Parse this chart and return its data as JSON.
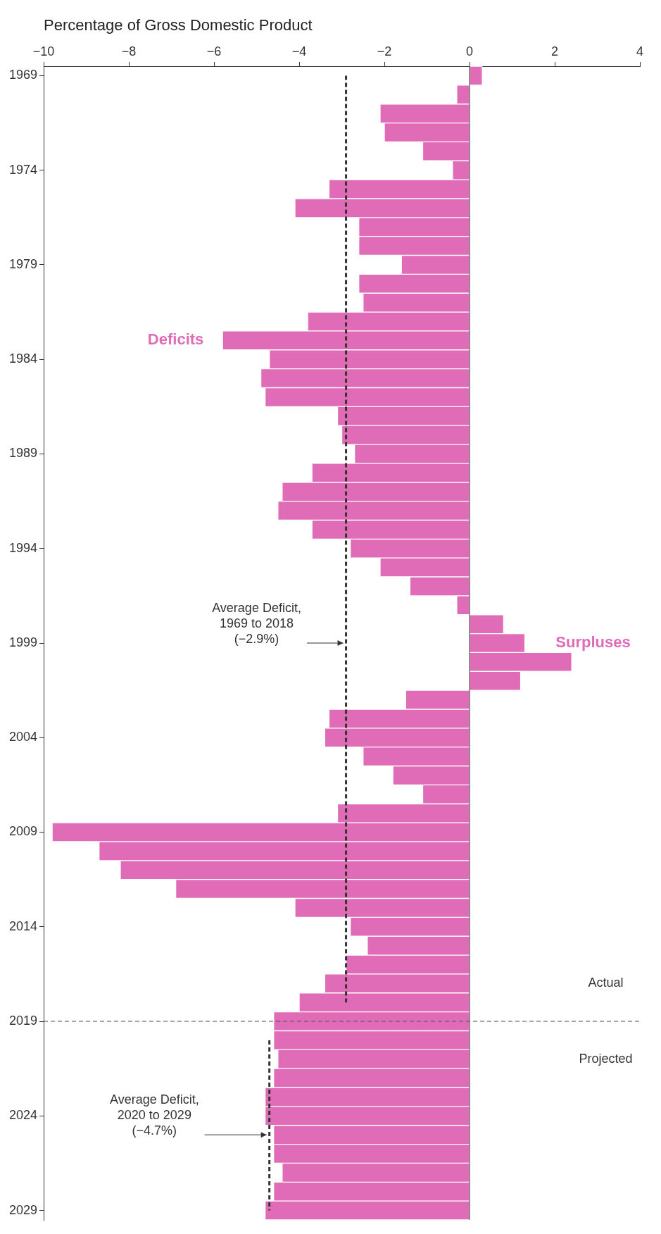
{
  "chart_data": {
    "type": "bar",
    "orientation": "horizontal",
    "xlabel": "Percentage of Gross Domestic Product",
    "categories": [
      "1969",
      null,
      null,
      null,
      null,
      "1974",
      null,
      null,
      null,
      null,
      "1979",
      null,
      null,
      null,
      null,
      "1984",
      null,
      null,
      null,
      null,
      "1989",
      null,
      null,
      null,
      null,
      "1994",
      null,
      null,
      null,
      null,
      "1999",
      null,
      null,
      null,
      null,
      "2004",
      null,
      null,
      null,
      null,
      "2009",
      null,
      null,
      null,
      null,
      "2014",
      null,
      null,
      null,
      null,
      "2019",
      null,
      null,
      null,
      null,
      "2024",
      null,
      null,
      null,
      null,
      "2029"
    ],
    "xlim": [
      -10,
      4
    ],
    "xticks": [
      {
        "value": -10,
        "label": "−10"
      },
      {
        "value": -8,
        "label": "−8"
      },
      {
        "value": -6,
        "label": "−6"
      },
      {
        "value": -4,
        "label": "−4"
      },
      {
        "value": -2,
        "label": "−2"
      },
      0,
      2,
      4
    ],
    "grid": false,
    "series": [
      {
        "color": "#e06cb8",
        "values": [
          0.3,
          -0.3,
          -2.1,
          -2.0,
          -1.1,
          -0.4,
          -3.3,
          -4.1,
          -2.6,
          -2.6,
          -1.6,
          -2.6,
          -2.5,
          -3.8,
          -5.8,
          -4.7,
          -4.9,
          -4.8,
          -3.1,
          -3.0,
          -2.7,
          -3.7,
          -4.4,
          -4.5,
          -3.7,
          -2.8,
          -2.1,
          -1.4,
          -0.3,
          0.8,
          1.3,
          2.4,
          1.2,
          -1.5,
          -3.3,
          -3.4,
          -2.5,
          -1.8,
          -1.1,
          -3.1,
          -9.8,
          -8.7,
          -8.2,
          -6.9,
          -4.1,
          -2.8,
          -2.4,
          -2.9,
          -3.4,
          -4.0,
          -4.6,
          -4.6,
          -4.5,
          -4.6,
          -4.8,
          -4.8,
          -4.6,
          -4.6,
          -4.4,
          -4.6,
          -4.8
        ]
      },
      {
        "type": "line",
        "color": "#333333",
        "line_style": "dashed",
        "values": [
          -2.9,
          -2.9,
          -2.9,
          -2.9,
          -2.9,
          -2.9,
          -2.9,
          -2.9,
          -2.9,
          -2.9,
          -2.9,
          -2.9,
          -2.9,
          -2.9,
          -2.9,
          -2.9,
          -2.9,
          -2.9,
          -2.9,
          -2.9,
          -2.9,
          -2.9,
          -2.9,
          -2.9,
          -2.9,
          -2.9,
          -2.9,
          -2.9,
          -2.9,
          -2.9,
          -2.9,
          -2.9,
          -2.9,
          -2.9,
          -2.9,
          -2.9,
          -2.9,
          -2.9,
          -2.9,
          -2.9,
          -2.9,
          -2.9,
          -2.9,
          -2.9,
          -2.9,
          -2.9,
          -2.9,
          -2.9,
          -2.9,
          -2.9,
          null,
          null,
          null,
          null,
          null,
          null,
          null,
          null,
          null,
          null,
          null
        ]
      },
      {
        "type": "line",
        "color": "#333333",
        "line_style": "dashed",
        "values": [
          null,
          null,
          null,
          null,
          null,
          null,
          null,
          null,
          null,
          null,
          null,
          null,
          null,
          null,
          null,
          null,
          null,
          null,
          null,
          null,
          null,
          null,
          null,
          null,
          null,
          null,
          null,
          null,
          null,
          null,
          null,
          null,
          null,
          null,
          null,
          null,
          null,
          null,
          null,
          null,
          null,
          null,
          null,
          null,
          null,
          null,
          null,
          null,
          null,
          null,
          null,
          -4.7,
          -4.7,
          -4.7,
          -4.7,
          -4.7,
          -4.7,
          -4.7,
          -4.7,
          -4.7,
          -4.7
        ]
      }
    ],
    "ref_lines": [
      {
        "axis": "y",
        "value": "2019",
        "line_style": "dashed",
        "color": "#555555"
      }
    ],
    "annotations": [
      "Deficits",
      "Surpluses",
      "Average Deficit,\n1969 to 2018\n(−2.9%)",
      "Actual",
      "Projected",
      "Average Deficit,\n2020 to 2029\n(−4.7%)"
    ]
  }
}
